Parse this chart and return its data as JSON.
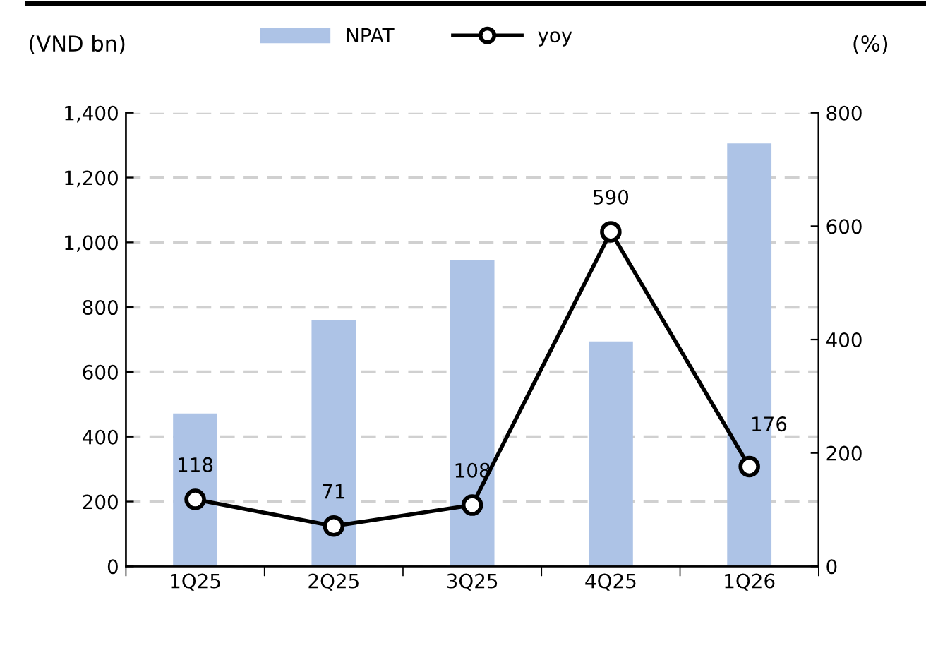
{
  "chart_data": {
    "type": "bar",
    "ylabel": "(VND bn)",
    "y2label": "(%)",
    "categories": [
      "1Q25",
      "2Q25",
      "3Q25",
      "4Q25",
      "1Q26"
    ],
    "series": [
      {
        "name": "NPAT",
        "color": "#adc3e6",
        "values": [
          472,
          760,
          945,
          694,
          1305
        ]
      },
      {
        "name": "yoy",
        "type": "line",
        "axis": "y2",
        "color": "#000000",
        "marker": "circle",
        "values": [
          118,
          71,
          108,
          590,
          176
        ],
        "value_labels": [
          "118",
          "71",
          "108",
          "590",
          "176"
        ]
      }
    ],
    "ylim": [
      0,
      1400
    ],
    "yticks": [
      {
        "value": 0,
        "label": "0"
      },
      {
        "value": 200,
        "label": "200"
      },
      {
        "value": 400,
        "label": "400"
      },
      {
        "value": 600,
        "label": "600"
      },
      {
        "value": 800,
        "label": "800"
      },
      {
        "value": 1000,
        "label": "1,000"
      },
      {
        "value": 1200,
        "label": "1,200"
      },
      {
        "value": 1400,
        "label": "1,400"
      }
    ],
    "y2lim": [
      0,
      800
    ],
    "y2ticks": [
      0,
      200,
      400,
      600,
      800
    ],
    "grid": "y",
    "legend": "top"
  }
}
